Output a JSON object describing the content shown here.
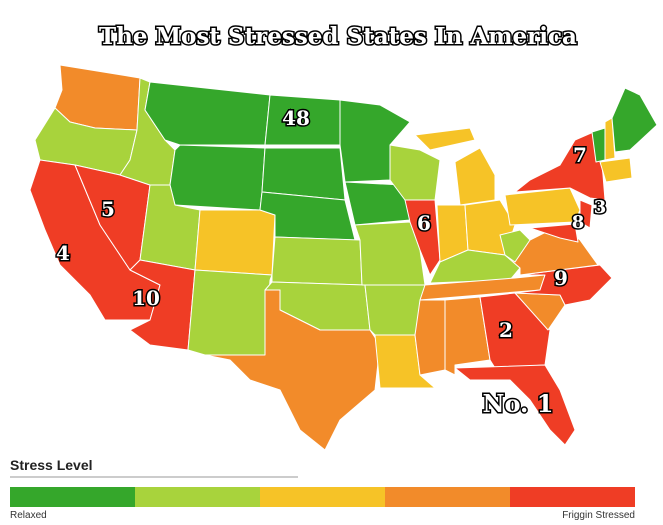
{
  "title": "The Most Stressed States In America",
  "map_labels": [
    "48",
    "7",
    "5",
    "6",
    "3",
    "8",
    "4",
    "10",
    "9",
    "2",
    "No. 1"
  ],
  "legend": {
    "title": "Stress Level",
    "colors": [
      "#35a72b",
      "#a8d33c",
      "#f6c327",
      "#f28b2a",
      "#ef3d25"
    ],
    "low_label": "Relaxed",
    "high_label": "Friggin Stressed"
  }
}
